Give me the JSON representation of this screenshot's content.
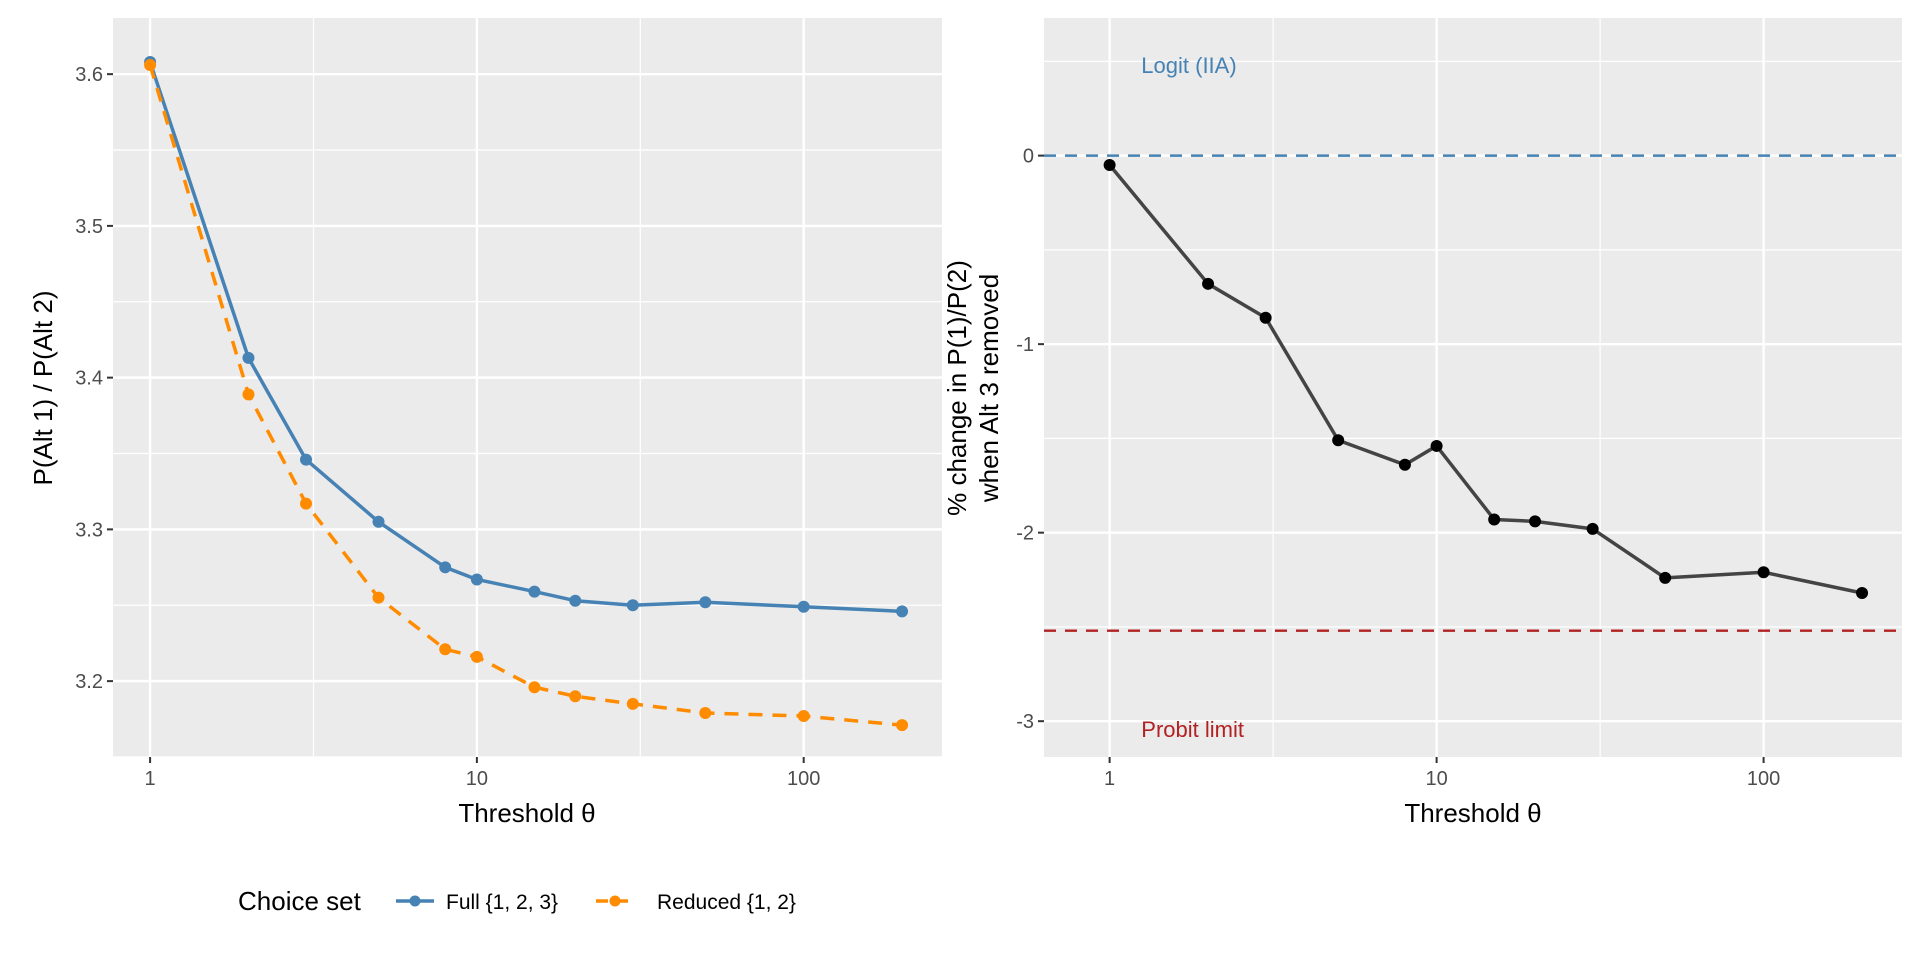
{
  "chart_data": [
    {
      "type": "line",
      "xlabel": "Threshold θ",
      "ylabel": "P(Alt 1) / P(Alt 2)",
      "xscale": "log10",
      "xlim": [
        0.77,
        265
      ],
      "ylim": [
        3.15,
        3.637
      ],
      "xticks": [
        1,
        10,
        100
      ],
      "xtick_labels": [
        "1",
        "10",
        "100"
      ],
      "yticks": [
        3.2,
        3.3,
        3.4,
        3.5,
        3.6
      ],
      "ytick_labels": [
        "3.2",
        "3.3",
        "3.4",
        "3.5",
        "3.6"
      ],
      "grid": true,
      "x": [
        1,
        2,
        3,
        5,
        8,
        10,
        15,
        20,
        30,
        50,
        100,
        200
      ],
      "series": [
        {
          "name": "Full {1, 2, 3}",
          "color": "#4682B4",
          "dash": "solid",
          "values": [
            3.608,
            3.413,
            3.346,
            3.305,
            3.275,
            3.267,
            3.259,
            3.253,
            3.25,
            3.252,
            3.249,
            3.246
          ]
        },
        {
          "name": "Reduced {1, 2}",
          "color": "#FF8C00",
          "dash": "dashed",
          "values": [
            3.606,
            3.389,
            3.317,
            3.255,
            3.221,
            3.216,
            3.196,
            3.19,
            3.185,
            3.179,
            3.177,
            3.171
          ]
        }
      ],
      "legend": {
        "title": "Choice set",
        "position": "bottom"
      }
    },
    {
      "type": "line",
      "xlabel": "Threshold θ",
      "ylabel_lines": [
        "% change in P(1)/P(2)",
        "when Alt 3 removed"
      ],
      "xscale": "log10",
      "xlim": [
        0.63,
        265
      ],
      "ylim": [
        -3.19,
        0.73
      ],
      "xticks": [
        1,
        10,
        100
      ],
      "xtick_labels": [
        "1",
        "10",
        "100"
      ],
      "yticks": [
        -3,
        -2,
        -1,
        0
      ],
      "ytick_labels": [
        "-3",
        "-2",
        "-1",
        "0"
      ],
      "grid": true,
      "x": [
        1,
        2,
        3,
        5,
        8,
        10,
        15,
        20,
        30,
        50,
        100,
        200
      ],
      "series": [
        {
          "name": "% change",
          "color": "#444444",
          "values": [
            -0.05,
            -0.68,
            -0.86,
            -1.51,
            -1.64,
            -1.54,
            -1.93,
            -1.94,
            -1.98,
            -2.24,
            -2.21,
            -2.32
          ]
        }
      ],
      "hlines": [
        {
          "y": 0,
          "color": "#4682B4",
          "label": "Logit (IIA)"
        },
        {
          "y": -2.52,
          "color": "#B22222",
          "label": "Probit limit"
        }
      ]
    }
  ]
}
